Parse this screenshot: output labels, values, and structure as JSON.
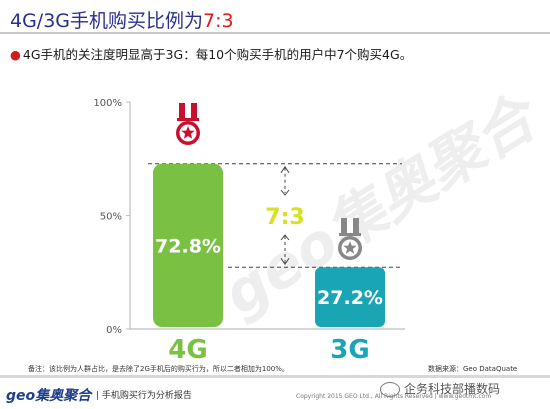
{
  "slide": {
    "title_prefix": "4G/3G手机购买比例为",
    "title_ratio": "7:3",
    "bullet": "4G手机的关注度明显高于3G：每10个购买手机的用户中7个购买4G。",
    "footnote": "备注：该比例为人群占比，是去除了2G手机后的购买行为，所以二者相加为100%。",
    "source": "数据来源：Geo DataQuate",
    "brand": "geo集奥聚合",
    "report_title": "| 手机购买行为分析报告",
    "copyright": "Copyright 2015 GEO Ltd., All Rights Reserved | www.geotmt.com",
    "wechat_label": "企务科技部播数码",
    "watermark": "geo集奥聚合",
    "accent_colors": {
      "title": "#2a2f8f",
      "ratio": "#e01919",
      "bar_4g": "#7ac143",
      "bar_3g": "#19a5b4",
      "ratio_label": "#d8e022",
      "medal_gold": "#c8102e",
      "medal_grey": "#888888"
    }
  },
  "chart_data": {
    "type": "bar",
    "categories": [
      "4G",
      "3G"
    ],
    "values": [
      72.8,
      27.2
    ],
    "value_labels": [
      "72.8%",
      "27.2%"
    ],
    "colors": [
      "#7ac143",
      "#19a5b4"
    ],
    "yticks": [
      "100%",
      "50%",
      "0%"
    ],
    "ylim": [
      0,
      100
    ],
    "annotation": "7:3",
    "grid": false
  }
}
